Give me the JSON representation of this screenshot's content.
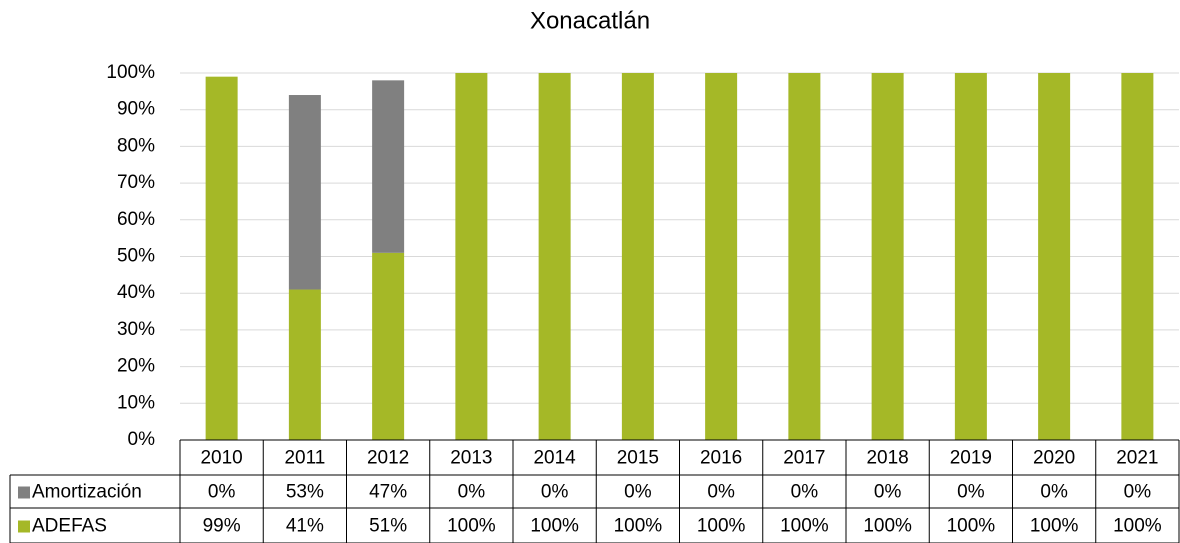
{
  "chart_data": {
    "type": "stacked_bar",
    "title": "Xonacatlán",
    "categories": [
      "2010",
      "2011",
      "2012",
      "2013",
      "2014",
      "2015",
      "2016",
      "2017",
      "2018",
      "2019",
      "2020",
      "2021"
    ],
    "series": [
      {
        "name": "ADEFAS",
        "color": "#a5b827",
        "values": [
          99,
          41,
          51,
          100,
          100,
          100,
          100,
          100,
          100,
          100,
          100,
          100
        ],
        "value_labels": [
          "99%",
          "41%",
          "51%",
          "100%",
          "100%",
          "100%",
          "100%",
          "100%",
          "100%",
          "100%",
          "100%",
          "100%"
        ]
      },
      {
        "name": "Amortización",
        "color": "#808080",
        "values": [
          0,
          53,
          47,
          0,
          0,
          0,
          0,
          0,
          0,
          0,
          0,
          0
        ],
        "value_labels": [
          "0%",
          "53%",
          "47%",
          "0%",
          "0%",
          "0%",
          "0%",
          "0%",
          "0%",
          "0%",
          "0%",
          "0%"
        ]
      }
    ],
    "ylim": [
      0,
      100
    ],
    "yticks": [
      {
        "value": 0,
        "label": "0%"
      },
      {
        "value": 10,
        "label": "10%"
      },
      {
        "value": 20,
        "label": "20%"
      },
      {
        "value": 30,
        "label": "30%"
      },
      {
        "value": 40,
        "label": "40%"
      },
      {
        "value": 50,
        "label": "50%"
      },
      {
        "value": 60,
        "label": "60%"
      },
      {
        "value": 70,
        "label": "70%"
      },
      {
        "value": 80,
        "label": "80%"
      },
      {
        "value": 90,
        "label": "90%"
      },
      {
        "value": 100,
        "label": "100%"
      }
    ],
    "grid": true
  }
}
